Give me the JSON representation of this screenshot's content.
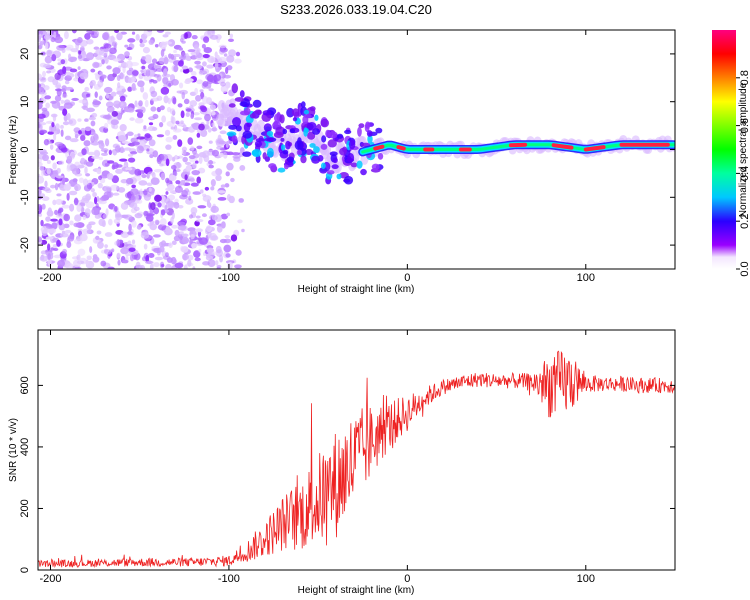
{
  "title": "S233.2026.033.19.04.C20",
  "colors": {
    "snr_line": "#ee2222",
    "frame": "#000000",
    "background": "#ffffff"
  },
  "chart_data": [
    {
      "type": "heatmap",
      "name": "spectrogram",
      "xlabel": "Height of straight line (km)",
      "ylabel": "Frequency (Hz)",
      "xlim": [
        -207,
        150
      ],
      "ylim": [
        -25,
        25
      ],
      "xticks": [
        -200,
        -100,
        0,
        100
      ],
      "yticks": [
        -20,
        -10,
        0,
        10,
        20
      ],
      "colorbar": {
        "label": "Normalized spectral amplitude",
        "range": [
          0,
          1
        ],
        "ticks": [
          0.0,
          0.2,
          0.4,
          0.6,
          0.8
        ]
      },
      "signal_track": [
        [
          -100,
          8
        ],
        [
          -90,
          5
        ],
        [
          -80,
          3
        ],
        [
          -70,
          1
        ],
        [
          -60,
          3
        ],
        [
          -55,
          5
        ],
        [
          -50,
          2
        ],
        [
          -45,
          -1
        ],
        [
          -40,
          -3
        ],
        [
          -35,
          -1
        ],
        [
          -30,
          -1
        ],
        [
          -20,
          0
        ],
        [
          -10,
          1
        ],
        [
          0,
          0
        ],
        [
          20,
          0
        ],
        [
          40,
          0
        ],
        [
          60,
          1
        ],
        [
          80,
          1
        ],
        [
          100,
          0
        ],
        [
          120,
          1
        ],
        [
          150,
          1
        ]
      ]
    },
    {
      "type": "line",
      "name": "snr",
      "xlabel": "Height of straight line (km)",
      "ylabel": "SNR (10 * v/v)",
      "xlim": [
        -207,
        150
      ],
      "ylim": [
        0,
        780
      ],
      "xticks": [
        -200,
        -100,
        0,
        100
      ],
      "yticks": [
        0,
        200,
        400,
        600
      ],
      "series": [
        {
          "name": "SNR",
          "x": [
            -207,
            -180,
            -150,
            -120,
            -100,
            -90,
            -80,
            -70,
            -60,
            -50,
            -40,
            -30,
            -20,
            -10,
            0,
            10,
            20,
            30,
            40,
            50,
            60,
            70,
            80,
            90,
            100,
            110,
            120,
            130,
            150
          ],
          "y": [
            20,
            22,
            25,
            25,
            30,
            60,
            100,
            150,
            180,
            230,
            280,
            350,
            420,
            470,
            510,
            560,
            595,
            610,
            620,
            615,
            615,
            610,
            600,
            610,
            605,
            605,
            605,
            600,
            600
          ],
          "noise": [
            12,
            12,
            14,
            14,
            18,
            35,
            60,
            90,
            120,
            150,
            180,
            170,
            120,
            80,
            60,
            35,
            25,
            25,
            25,
            25,
            25,
            30,
            110,
            110,
            30,
            25,
            25,
            25,
            25
          ]
        }
      ]
    }
  ]
}
